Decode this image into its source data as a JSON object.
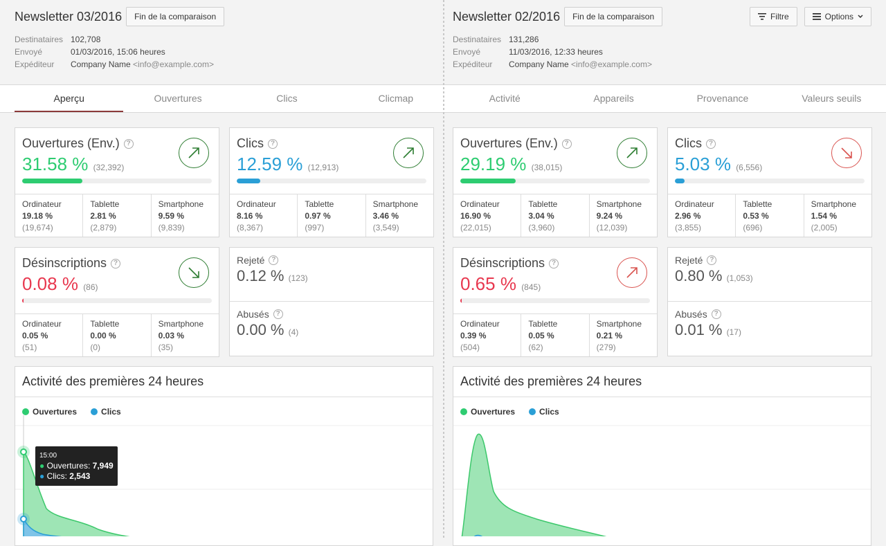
{
  "left": {
    "title": "Newsletter 03/2016",
    "end_btn": "Fin de la comparaison",
    "meta": [
      {
        "k": "Destinataires",
        "v": "102,708",
        "e": ""
      },
      {
        "k": "Envoyé",
        "v": "01/03/2016, 15:06 heures",
        "e": ""
      },
      {
        "k": "Expéditeur",
        "v": "Company Name",
        "e": "<info@example.com>"
      }
    ],
    "opens": {
      "title": "Ouvertures (Env.)",
      "pct": "31.58 %",
      "cnt": "(32,392)",
      "fill": 31.58,
      "trend": "up",
      "dev": [
        [
          "Ordinateur",
          "19.18 %",
          "(19,674)"
        ],
        [
          "Tablette",
          "2.81 %",
          "(2,879)"
        ],
        [
          "Smartphone",
          "9.59 %",
          "(9,839)"
        ]
      ]
    },
    "clicks": {
      "title": "Clics",
      "pct": "12.59 %",
      "cnt": "(12,913)",
      "fill": 12.59,
      "trend": "up",
      "dev": [
        [
          "Ordinateur",
          "8.16 %",
          "(8,367)"
        ],
        [
          "Tablette",
          "0.97 %",
          "(997)"
        ],
        [
          "Smartphone",
          "3.46 %",
          "(3,549)"
        ]
      ]
    },
    "unsub": {
      "title": "Désinscriptions",
      "pct": "0.08 %",
      "cnt": "(86)",
      "fill": 0.08,
      "trend": "down",
      "dev": [
        [
          "Ordinateur",
          "0.05 %",
          "(51)"
        ],
        [
          "Tablette",
          "0.00 %",
          "(0)"
        ],
        [
          "Smartphone",
          "0.03 %",
          "(35)"
        ]
      ]
    },
    "rej": {
      "label": "Rejeté",
      "val": "0.12 %",
      "cnt": "(123)"
    },
    "abu": {
      "label": "Abusés",
      "val": "0.00 %",
      "cnt": "(4)"
    },
    "activity": {
      "title": "Activité des premières 24 heures",
      "leg1": "Ouvertures",
      "leg2": "Clics",
      "tip_time": "15:00",
      "tip_o_label": "Ouvertures:",
      "tip_o": "7,949",
      "tip_c_label": "Clics:",
      "tip_c": "2,543"
    }
  },
  "right": {
    "title": "Newsletter 02/2016",
    "end_btn": "Fin de la comparaison",
    "meta": [
      {
        "k": "Destinataires",
        "v": "131,286",
        "e": ""
      },
      {
        "k": "Envoyé",
        "v": "11/03/2016, 12:33 heures",
        "e": ""
      },
      {
        "k": "Expéditeur",
        "v": "Company Name",
        "e": "<info@example.com>"
      }
    ],
    "opens": {
      "title": "Ouvertures (Env.)",
      "pct": "29.19 %",
      "cnt": "(38,015)",
      "fill": 29.19,
      "trend": "up",
      "dev": [
        [
          "Ordinateur",
          "16.90 %",
          "(22,015)"
        ],
        [
          "Tablette",
          "3.04 %",
          "(3,960)"
        ],
        [
          "Smartphone",
          "9.24 %",
          "(12,039)"
        ]
      ]
    },
    "clicks": {
      "title": "Clics",
      "pct": "5.03 %",
      "cnt": "(6,556)",
      "fill": 5.03,
      "trend": "down-red",
      "dev": [
        [
          "Ordinateur",
          "2.96 %",
          "(3,855)"
        ],
        [
          "Tablette",
          "0.53 %",
          "(696)"
        ],
        [
          "Smartphone",
          "1.54 %",
          "(2,005)"
        ]
      ]
    },
    "unsub": {
      "title": "Désinscriptions",
      "pct": "0.65 %",
      "cnt": "(845)",
      "fill": 0.65,
      "trend": "up-red",
      "dev": [
        [
          "Ordinateur",
          "0.39 %",
          "(504)"
        ],
        [
          "Tablette",
          "0.05 %",
          "(62)"
        ],
        [
          "Smartphone",
          "0.21 %",
          "(279)"
        ]
      ]
    },
    "rej": {
      "label": "Rejeté",
      "val": "0.80 %",
      "cnt": "(1,053)"
    },
    "abu": {
      "label": "Abusés",
      "val": "0.01 %",
      "cnt": "(17)"
    },
    "activity": {
      "title": "Activité des premières 24 heures",
      "leg1": "Ouvertures",
      "leg2": "Clics"
    }
  },
  "toolbar": {
    "filter": "Filtre",
    "options": "Options"
  },
  "tabs": [
    "Aperçu",
    "Ouvertures",
    "Clics",
    "Clicmap",
    "Activité",
    "Appareils",
    "Provenance",
    "Valeurs seuils"
  ],
  "colors": {
    "green": "#2ecc71",
    "blue": "#2a9fd6",
    "red": "#e8384f",
    "trend_green": "#2e7d32",
    "trend_red": "#d9534f"
  }
}
